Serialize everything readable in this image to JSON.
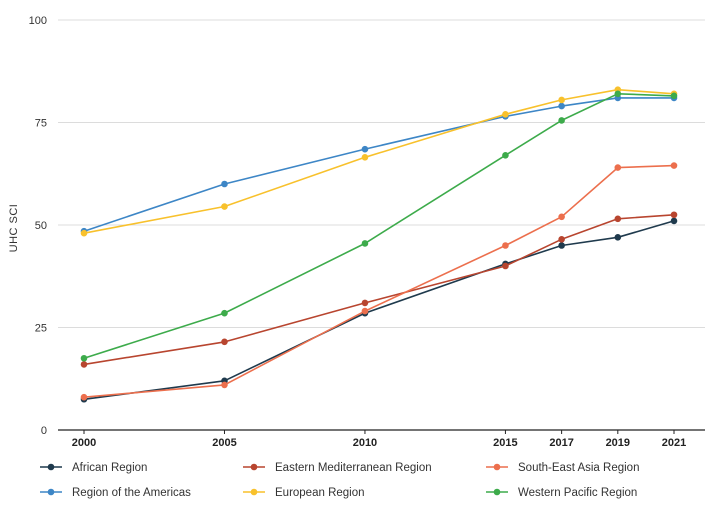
{
  "chart_data": {
    "type": "line",
    "title": "",
    "xlabel": "",
    "ylabel": "UHC SCI",
    "x": [
      2000,
      2005,
      2010,
      2015,
      2017,
      2019,
      2021
    ],
    "x_tick_labels": [
      "2000",
      "2005",
      "2010",
      "2015",
      "2017",
      "2019",
      "2021"
    ],
    "y_ticks": [
      0,
      25,
      50,
      75,
      100
    ],
    "y_tick_labels": [
      "0",
      "25",
      "50",
      "75",
      "100"
    ],
    "ylim": [
      0,
      100
    ],
    "grid": "horizontal",
    "legend_position": "bottom",
    "series": [
      {
        "name": "African Region",
        "color": "#1f3a4d",
        "values": [
          7.5,
          12,
          28.5,
          40.5,
          45,
          47,
          51
        ]
      },
      {
        "name": "Eastern Mediterranean Region",
        "color": "#b8452f",
        "values": [
          16,
          21.5,
          31,
          40,
          46.5,
          51.5,
          52.5
        ]
      },
      {
        "name": "South-East Asia Region",
        "color": "#ec6f4d",
        "values": [
          8,
          11,
          29,
          45,
          52,
          64,
          64.5
        ]
      },
      {
        "name": "Region of the Americas",
        "color": "#3d86c6",
        "values": [
          48.5,
          60,
          68.5,
          76.5,
          79,
          81,
          81
        ]
      },
      {
        "name": "European Region",
        "color": "#f8c12c",
        "values": [
          48,
          54.5,
          66.5,
          77,
          80.5,
          83,
          82
        ]
      },
      {
        "name": "Western Pacific Region",
        "color": "#3dab4b",
        "values": [
          17.5,
          28.5,
          45.5,
          67,
          75.5,
          82,
          81.5
        ]
      }
    ]
  }
}
